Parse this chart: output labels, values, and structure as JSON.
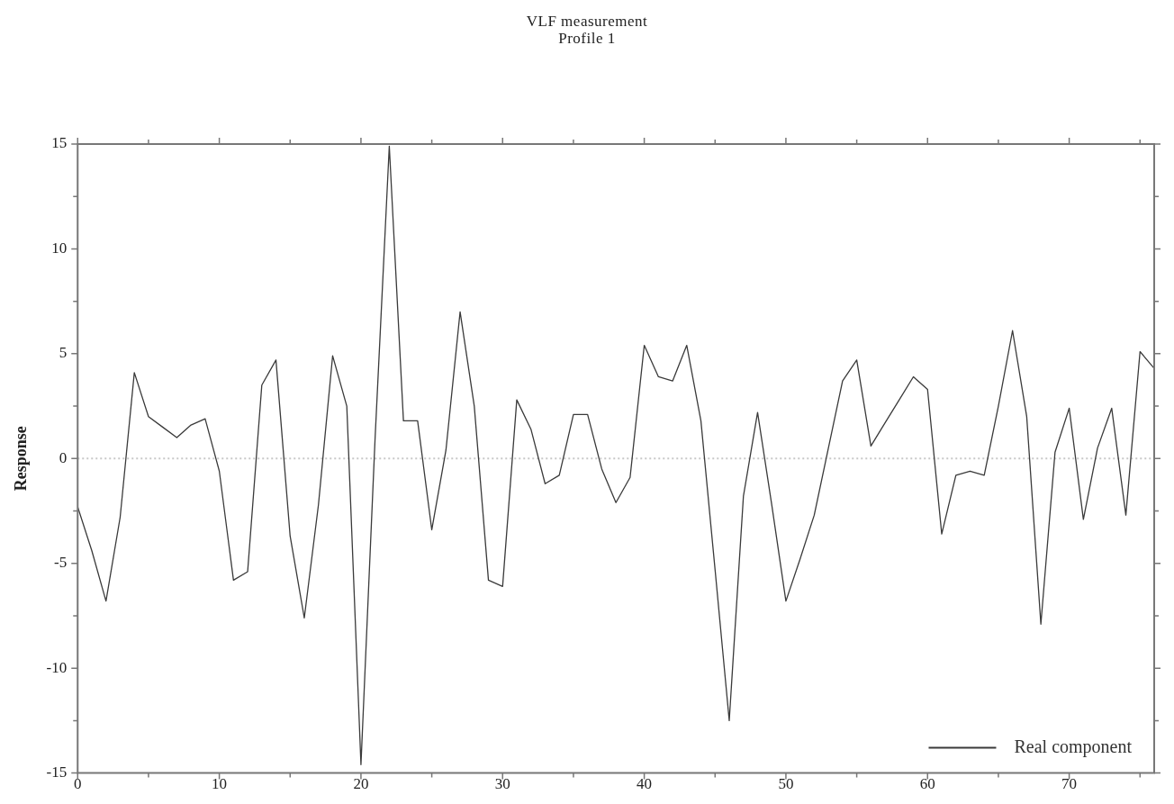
{
  "chart_data": {
    "type": "line",
    "title": "VLF measurement",
    "subtitle": "Profile 1",
    "ylabel": "Response",
    "x": [
      0,
      1,
      2,
      3,
      4,
      5,
      6,
      7,
      8,
      9,
      10,
      11,
      12,
      13,
      14,
      15,
      16,
      17,
      18,
      19,
      20,
      21,
      22,
      23,
      24,
      25,
      26,
      27,
      28,
      29,
      30,
      31,
      32,
      33,
      34,
      35,
      36,
      37,
      38,
      39,
      40,
      41,
      42,
      43,
      44,
      45,
      46,
      47,
      48,
      49,
      50,
      51,
      52,
      53,
      54,
      55,
      56,
      57,
      58,
      59,
      60,
      61,
      62,
      63,
      64,
      65,
      66,
      67,
      68,
      69,
      70,
      71,
      72,
      73,
      74,
      75,
      76
    ],
    "series": [
      {
        "name": "Real component",
        "color": "#3a3a3a",
        "values": [
          -2.3,
          -4.4,
          -6.8,
          -2.8,
          4.1,
          2.0,
          1.5,
          1.0,
          1.6,
          1.9,
          -0.6,
          -5.8,
          -5.4,
          3.5,
          4.7,
          -3.7,
          -7.6,
          -2.2,
          4.9,
          2.5,
          -14.6,
          1.0,
          14.9,
          1.8,
          1.8,
          -3.4,
          0.4,
          7.0,
          2.5,
          -5.8,
          -6.1,
          2.8,
          1.4,
          -1.2,
          -0.8,
          2.1,
          2.1,
          -0.5,
          -2.1,
          -0.9,
          5.4,
          3.9,
          3.7,
          5.4,
          1.8,
          -5.3,
          -12.5,
          -1.8,
          2.2,
          -2.2,
          -6.8,
          -4.8,
          -2.7,
          0.5,
          3.7,
          4.7,
          0.6,
          1.7,
          2.8,
          3.9,
          3.3,
          -3.6,
          -0.8,
          -0.6,
          -0.8,
          2.5,
          6.1,
          2.0,
          -7.9,
          0.3,
          2.4,
          -2.9,
          0.5,
          2.4,
          -2.7,
          5.1,
          4.3
        ]
      }
    ],
    "xlim": [
      0,
      76
    ],
    "xticks": [
      0,
      {
        "value": 5,
        "label": null
      },
      10,
      {
        "value": 15,
        "label": null
      },
      20,
      {
        "value": 25,
        "label": null
      },
      30,
      {
        "value": 35,
        "label": null
      },
      40,
      {
        "value": 45,
        "label": null
      },
      50,
      {
        "value": 55,
        "label": null
      },
      60,
      {
        "value": 65,
        "label": null
      },
      70,
      {
        "value": 75,
        "label": null
      }
    ],
    "ylim": [
      -15,
      15
    ],
    "yticks": [
      -15,
      {
        "value": -12.5,
        "label": null
      },
      -10,
      {
        "value": -7.5,
        "label": null
      },
      -5,
      {
        "value": -2.5,
        "label": null
      },
      0,
      {
        "value": 2.5,
        "label": null
      },
      5,
      {
        "value": 7.5,
        "label": null
      },
      10,
      {
        "value": 12.5,
        "label": null
      },
      15
    ],
    "ref_lines": [
      {
        "axis": "y",
        "value": 0,
        "label": null,
        "color": "#c8c8c8",
        "line_style": "dotted"
      }
    ],
    "grid": false,
    "legend": "bottom right",
    "marker": "none",
    "line_style": "solid"
  }
}
